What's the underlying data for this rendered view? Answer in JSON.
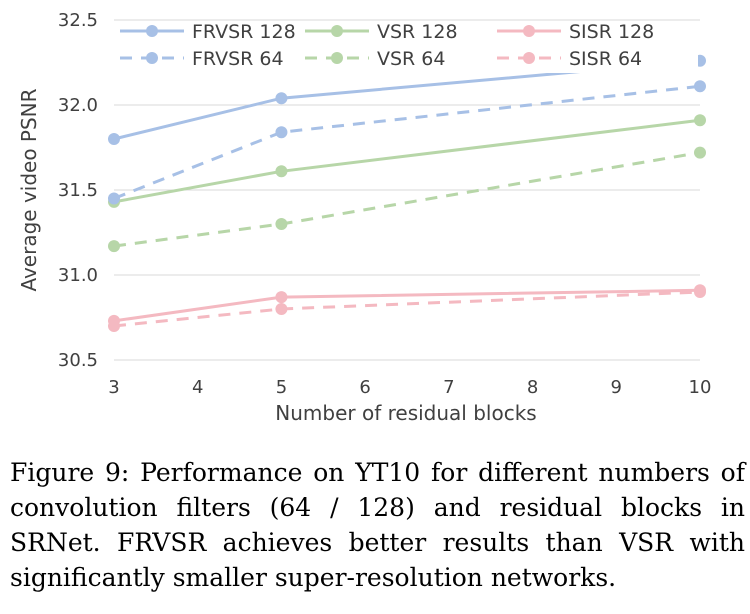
{
  "chart_data": {
    "type": "line",
    "xlabel": "Number of residual blocks",
    "ylabel": "Average video PSNR",
    "xlim": [
      3,
      10
    ],
    "ylim": [
      30.5,
      32.5
    ],
    "xticks": [
      "3",
      "4",
      "5",
      "6",
      "7",
      "8",
      "9",
      "10"
    ],
    "yticks": [
      "30.5",
      "31.0",
      "31.5",
      "32.0",
      "32.5"
    ],
    "grid": "horizontal",
    "legend": "top",
    "series": [
      {
        "name": "FRVSR 128",
        "color": "#a7c0e6",
        "dash": "solid",
        "x": [
          3,
          5,
          10
        ],
        "y": [
          31.8,
          32.04,
          32.26
        ]
      },
      {
        "name": "VSR 128",
        "color": "#b7d6a8",
        "dash": "solid",
        "x": [
          3,
          5,
          10
        ],
        "y": [
          31.43,
          31.61,
          31.91
        ]
      },
      {
        "name": "SISR 128",
        "color": "#f4b9c1",
        "dash": "solid",
        "x": [
          3,
          5,
          10
        ],
        "y": [
          30.73,
          30.87,
          30.91
        ]
      },
      {
        "name": "FRVSR 64",
        "color": "#a7c0e6",
        "dash": "dashed",
        "x": [
          3,
          5,
          10
        ],
        "y": [
          31.45,
          31.84,
          32.11
        ]
      },
      {
        "name": "VSR 64",
        "color": "#b7d6a8",
        "dash": "dashed",
        "x": [
          3,
          5,
          10
        ],
        "y": [
          31.17,
          31.3,
          31.72
        ]
      },
      {
        "name": "SISR 64",
        "color": "#f4b9c1",
        "dash": "dashed",
        "x": [
          3,
          5,
          10
        ],
        "y": [
          30.7,
          30.8,
          30.9
        ]
      }
    ]
  },
  "caption": {
    "text": "Figure 9: Performance on YT10 for different numbers of convolution filters (64 / 128) and residual blocks in SRNet. FRVSR achieves better results than VSR with significantly smaller super-resolution networks."
  }
}
